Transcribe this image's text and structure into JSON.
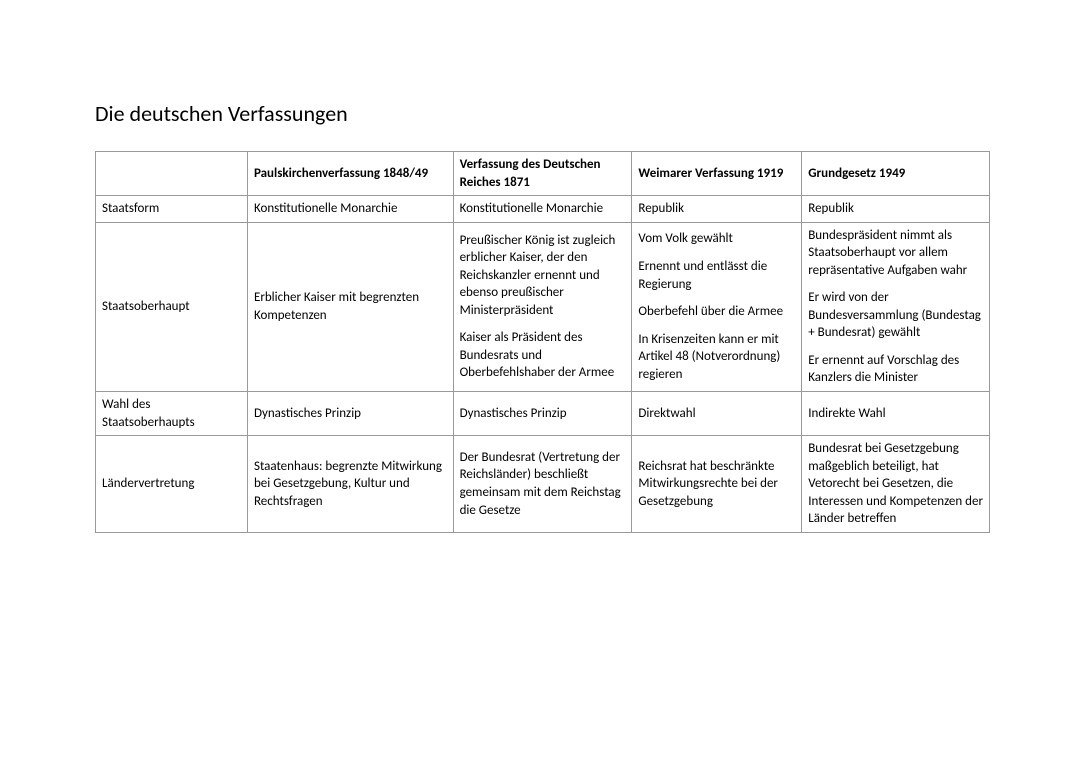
{
  "title": "Die deutschen Verfassungen",
  "table": {
    "header": [
      "",
      "Paulskirchenverfassung 1848/49",
      "Verfassung des Deutschen Reiches\n1871",
      "Weimarer Verfassung 1919",
      "Grundgesetz\n1949"
    ],
    "rows": [
      {
        "label": "Staatsform",
        "cells": [
          "Konstitutionelle Monarchie",
          "Konstitutionelle Monarchie",
          "Republik",
          "Republik"
        ]
      },
      {
        "label": "Staatsoberhaupt",
        "cells": [
          "Erblicher Kaiser mit begrenzten Kompetenzen",
          "Preußischer König ist zugleich erblicher Kaiser, der den Reichskanzler ernennt und ebenso preußischer Ministerpräsident\n\nKaiser als Präsident des Bundesrats und Oberbefehlshaber der Armee",
          "Vom Volk gewählt\n\nErnennt und entlässt die Regierung\n\nOberbefehl über die Armee\n\nIn Krisenzeiten kann er mit Artikel 48 (Notverordnung) regieren",
          "Bundespräsident nimmt als Staatsoberhaupt vor allem repräsentative Aufgaben wahr\n\nEr wird von der Bundesversammlung (Bundestag + Bundesrat) gewählt\n\nEr ernennt auf Vorschlag des Kanzlers die Minister"
        ]
      },
      {
        "label": "Wahl des Staatsoberhaupts",
        "cells": [
          "Dynastisches Prinzip",
          "Dynastisches Prinzip",
          "Direktwahl",
          "Indirekte Wahl"
        ]
      },
      {
        "label": "Ländervertretung",
        "cells": [
          "Staatenhaus: begrenzte Mitwirkung bei Gesetzgebung, Kultur und Rechtsfragen",
          "Der Bundesrat (Vertretung der Reichsländer) beschließt gemeinsam mit dem Reichstag die Gesetze",
          "Reichsrat hat beschränkte Mitwirkungsrechte bei der Gesetzgebung",
          "Bundesrat bei Gesetzgebung maßgeblich beteiligt, hat Vetorecht bei Gesetzen, die Interessen und Kompetenzen der Länder betreffen"
        ]
      }
    ]
  },
  "colors": {
    "background": "#ffffff",
    "text": "#000000",
    "border": "#999999"
  },
  "fonts": {
    "title_size": 22,
    "title_weight": 300,
    "cell_size": 13,
    "header_weight": 700
  }
}
